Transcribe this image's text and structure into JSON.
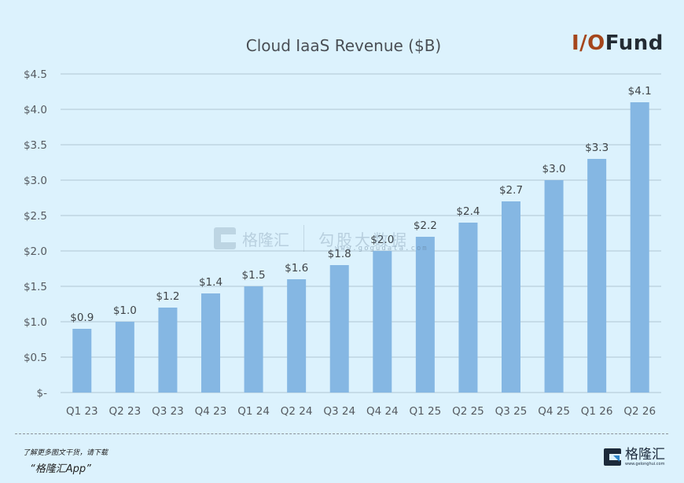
{
  "brand_logo": {
    "part1": "I/O",
    "part2": "Fund"
  },
  "watermark": {
    "name_cn": "格隆汇",
    "partner_cn": "勾股大数据",
    "partner_url": "www.gogudata.com"
  },
  "footer": {
    "line1": "了解更多图文干货，请下载",
    "line2": "“格隆汇App”",
    "brand_name": "格隆汇",
    "brand_url": "www.gelonghui.com"
  },
  "colors": {
    "bar": "#85b7e3",
    "gridline": "#b9cfdc",
    "background": "#dcf2fd",
    "logo_accent": "#a5461c",
    "logo_dark": "#232b33"
  },
  "chart_data": {
    "type": "bar",
    "title": "Cloud IaaS Revenue ($B)",
    "xlabel": "",
    "ylabel": "",
    "ylim": [
      0,
      4.5
    ],
    "yticks": [
      0,
      0.5,
      1.0,
      1.5,
      2.0,
      2.5,
      3.0,
      3.5,
      4.0,
      4.5
    ],
    "ytick_labels": [
      "$-",
      "$0.5",
      "$1.0",
      "$1.5",
      "$2.0",
      "$2.5",
      "$3.0",
      "$3.5",
      "$4.0",
      "$4.5"
    ],
    "grid": true,
    "legend": "none",
    "categories": [
      "Q1 23",
      "Q2 23",
      "Q3 23",
      "Q4 23",
      "Q1 24",
      "Q2 24",
      "Q3 24",
      "Q4 24",
      "Q1 25",
      "Q2 25",
      "Q3 25",
      "Q4 25",
      "Q1 26",
      "Q2 26"
    ],
    "values": [
      0.9,
      1.0,
      1.2,
      1.4,
      1.5,
      1.6,
      1.8,
      2.0,
      2.2,
      2.4,
      2.7,
      3.0,
      3.3,
      4.1
    ],
    "data_labels": [
      "$0.9",
      "$1.0",
      "$1.2",
      "$1.4",
      "$1.5",
      "$1.6",
      "$1.8",
      "$2.0",
      "$2.2",
      "$2.4",
      "$2.7",
      "$3.0",
      "$3.3",
      "$4.1"
    ]
  }
}
